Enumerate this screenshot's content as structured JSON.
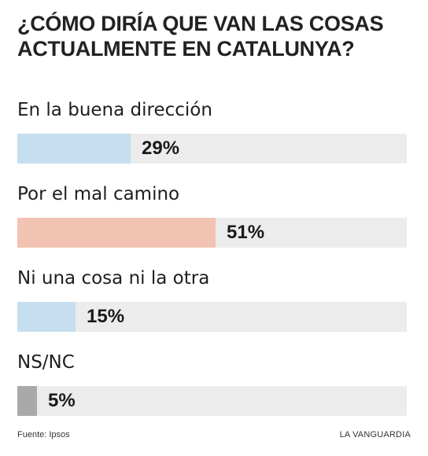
{
  "title_lines": [
    "¿Cómo diría que van las cosas",
    "actualmente en Catalunya?"
  ],
  "chart_data": {
    "type": "bar",
    "orientation": "horizontal",
    "title": "¿Cómo diría que van las cosas actualmente en Catalunya?",
    "categories": [
      "En la buena dirección",
      "Por el mal camino",
      "Ni una cosa ni la otra",
      "NS/NC"
    ],
    "values": [
      29,
      51,
      15,
      5
    ],
    "value_labels": [
      "29%",
      "51%",
      "15%",
      "5%"
    ],
    "unit": "%",
    "xlim": [
      0,
      100
    ],
    "colors": [
      "#c5dff0",
      "#f2c3b3",
      "#c5dff0",
      "#a9a9a9"
    ],
    "track_color": "#ececec",
    "grid": false,
    "legend": "none"
  },
  "footer": {
    "source": "Fuente: Ipsos",
    "brand": "LA VANGUARDIA"
  }
}
